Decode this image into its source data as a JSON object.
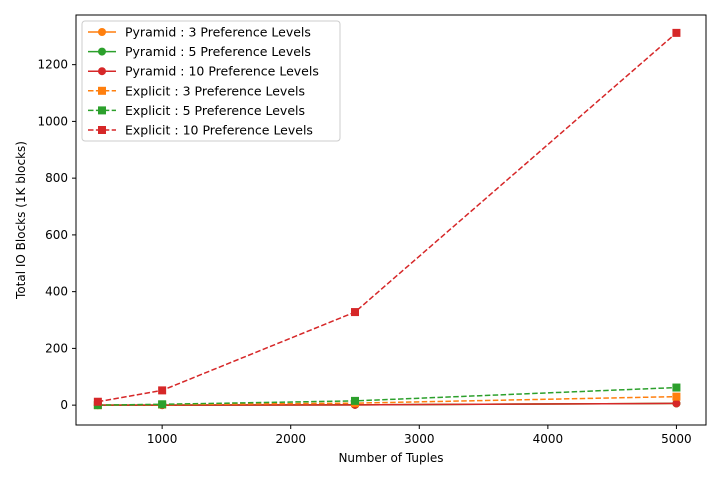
{
  "chart_data": {
    "type": "line",
    "title": "",
    "xlabel": "Number of Tuples",
    "ylabel": "Total IO Blocks (1K blocks)",
    "xlim": [
      330,
      5230
    ],
    "ylim": [
      -70,
      1375
    ],
    "xticks": [
      1000,
      2000,
      3000,
      4000,
      5000
    ],
    "yticks": [
      0,
      200,
      400,
      600,
      800,
      1000,
      1200
    ],
    "grid": false,
    "legend_position": "top-left",
    "x": [
      500,
      1000,
      2500,
      5000
    ],
    "series": [
      {
        "name": "Pyramid : 3 Preference Levels",
        "values": [
          0,
          0,
          1,
          6
        ],
        "color": "#ff7f0e",
        "dash": false,
        "marker": "circle"
      },
      {
        "name": "Pyramid : 5 Preference Levels",
        "values": [
          0,
          0,
          1,
          6
        ],
        "color": "#2ca02c",
        "dash": false,
        "marker": "circle"
      },
      {
        "name": "Pyramid : 10 Preference Levels",
        "values": [
          0,
          0,
          1,
          6
        ],
        "color": "#d62728",
        "dash": false,
        "marker": "circle"
      },
      {
        "name": "Explicit : 3 Preference Levels",
        "values": [
          0,
          2,
          7,
          30
        ],
        "color": "#ff7f0e",
        "dash": true,
        "marker": "square"
      },
      {
        "name": "Explicit : 5 Preference Levels",
        "values": [
          0,
          3,
          15,
          62
        ],
        "color": "#2ca02c",
        "dash": true,
        "marker": "square"
      },
      {
        "name": "Explicit : 10 Preference Levels",
        "values": [
          12,
          52,
          328,
          1312
        ],
        "color": "#d62728",
        "dash": true,
        "marker": "square"
      }
    ]
  }
}
